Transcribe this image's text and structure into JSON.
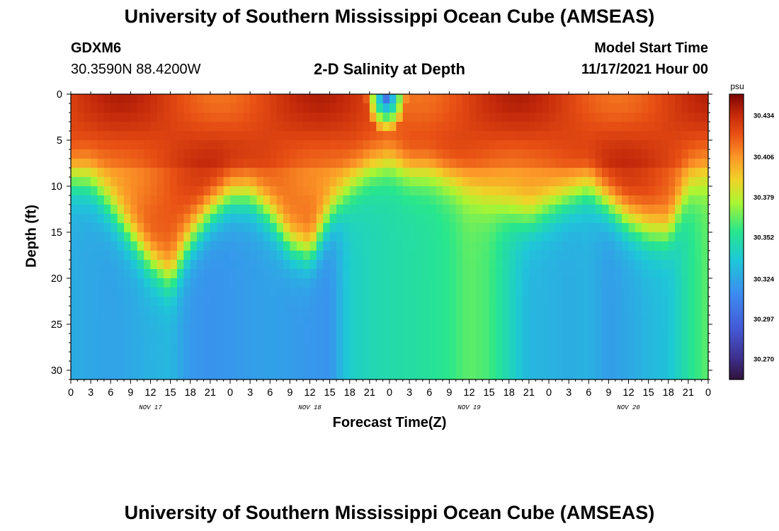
{
  "header": {
    "title": "University of Southern Mississippi Ocean Cube (AMSEAS)",
    "station": "GDXM6",
    "coords": "30.3590N  88.4200W",
    "plot_title": "2-D Salinity at Depth",
    "model_start_label": "Model Start Time",
    "model_start_value": "11/17/2021 Hour 00"
  },
  "footer": {
    "title": "University of Southern Mississippi Ocean Cube (AMSEAS)"
  },
  "chart_data": {
    "type": "heatmap",
    "xlabel": "Forecast Time(Z)",
    "ylabel": "Depth (ft)",
    "x_ticks": [
      "0",
      "3",
      "6",
      "9",
      "12",
      "15",
      "18",
      "21",
      "0",
      "3",
      "6",
      "9",
      "12",
      "15",
      "18",
      "21",
      "0",
      "3",
      "6",
      "9",
      "12",
      "15",
      "18",
      "21",
      "0",
      "3",
      "6",
      "9",
      "12",
      "15",
      "18",
      "21",
      "0"
    ],
    "x_range_hours": [
      0,
      96
    ],
    "day_labels": [
      {
        "label": "NOV 17",
        "hour": 12
      },
      {
        "label": "NOV 18",
        "hour": 36
      },
      {
        "label": "NOV 19",
        "hour": 60
      },
      {
        "label": "NOV 20",
        "hour": 84
      }
    ],
    "y_ticks": [
      "0",
      "5",
      "10",
      "15",
      "20",
      "25",
      "30"
    ],
    "y_tick_values": [
      0,
      5,
      10,
      15,
      20,
      25,
      30
    ],
    "y_range_ft": [
      0,
      31
    ],
    "colorbar": {
      "unit": "psu",
      "ticks": [
        "30.434",
        "30.406",
        "30.379",
        "30.352",
        "30.324",
        "30.297",
        "30.270"
      ],
      "tick_values": [
        30.434,
        30.406,
        30.379,
        30.352,
        30.324,
        30.297,
        30.27
      ],
      "range": [
        30.256,
        30.448
      ]
    },
    "time_hours": [
      0,
      3,
      6,
      9,
      12,
      15,
      18,
      21,
      24,
      27,
      30,
      33,
      36,
      39,
      42,
      45,
      48,
      51,
      54,
      57,
      60,
      63,
      66,
      69,
      72,
      75,
      78,
      81,
      84,
      87,
      90,
      93,
      96
    ],
    "interface_depth_ft": [
      9,
      9.5,
      12,
      15,
      18,
      20,
      16,
      13,
      11,
      11,
      13,
      16,
      17,
      13,
      10,
      8,
      7,
      8,
      8,
      9,
      10,
      11,
      12,
      13,
      12,
      11,
      10,
      12,
      14,
      15,
      15,
      10,
      9
    ],
    "lower_salinity_psu": [
      30.326,
      30.324,
      30.322,
      30.324,
      30.328,
      30.33,
      30.318,
      30.316,
      30.318,
      30.32,
      30.322,
      30.32,
      30.318,
      30.316,
      30.34,
      30.345,
      30.348,
      30.35,
      30.352,
      30.356,
      30.364,
      30.36,
      30.345,
      30.33,
      30.328,
      30.326,
      30.328,
      30.32,
      30.324,
      30.33,
      30.334,
      30.352,
      30.364
    ]
  }
}
